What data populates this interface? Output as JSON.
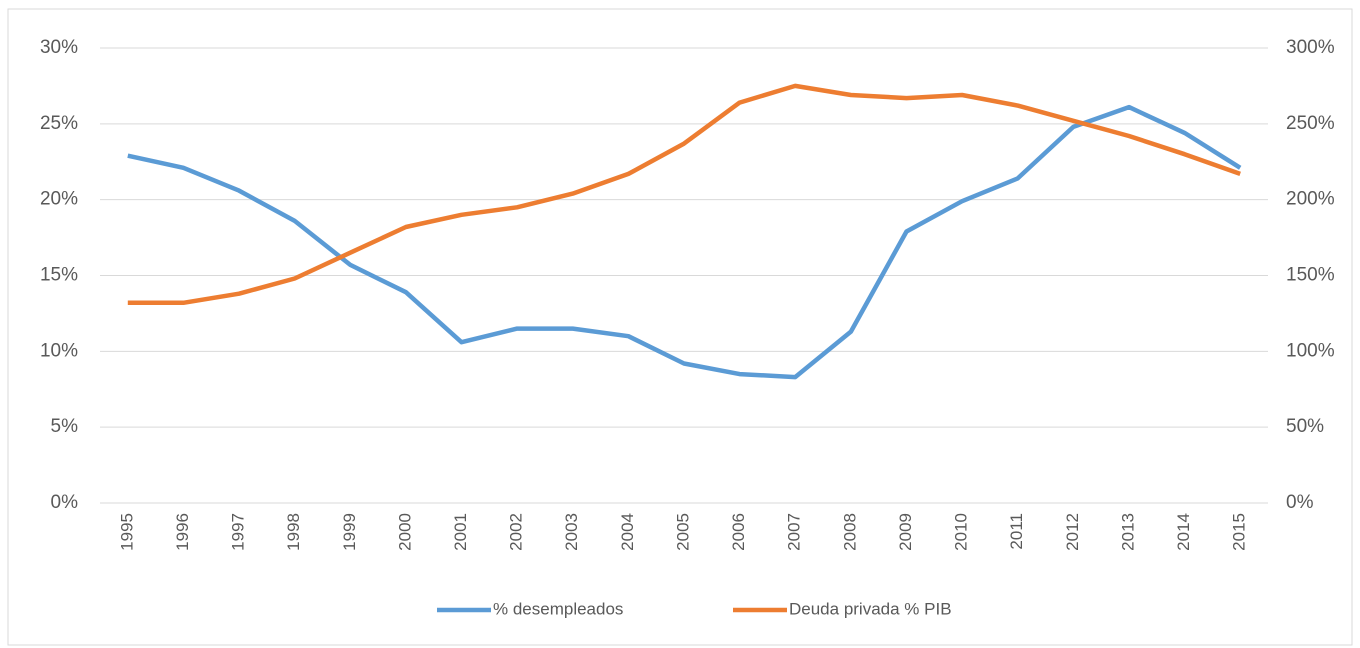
{
  "chart_data": {
    "type": "line",
    "categories": [
      "1995",
      "1996",
      "1997",
      "1998",
      "1999",
      "2000",
      "2001",
      "2002",
      "2003",
      "2004",
      "2005",
      "2006",
      "2007",
      "2008",
      "2009",
      "2010",
      "2011",
      "2012",
      "2013",
      "2014",
      "2015"
    ],
    "series": [
      {
        "name": "% desempleados",
        "color": "#5b9bd5",
        "axis": "y",
        "values": [
          22.9,
          22.1,
          20.6,
          18.6,
          15.7,
          13.9,
          10.6,
          11.5,
          11.5,
          11.0,
          9.2,
          8.5,
          8.3,
          11.3,
          17.9,
          19.9,
          21.4,
          24.8,
          26.1,
          24.4,
          22.1
        ]
      },
      {
        "name": "Deuda privada % PIB",
        "color": "#ed7d31",
        "axis": "y2",
        "values": [
          132,
          132,
          138,
          148,
          165,
          182,
          190,
          195,
          204,
          217,
          237,
          264,
          275,
          269,
          267,
          269,
          262,
          252,
          242,
          230,
          217
        ]
      }
    ],
    "ylim": [
      0,
      30
    ],
    "yticks": [
      {
        "value": 0,
        "label": "0%"
      },
      {
        "value": 5,
        "label": "5%"
      },
      {
        "value": 10,
        "label": "10%"
      },
      {
        "value": 15,
        "label": "15%"
      },
      {
        "value": 20,
        "label": "20%"
      },
      {
        "value": 25,
        "label": "25%"
      },
      {
        "value": 30,
        "label": "30%"
      }
    ],
    "y2lim": [
      0,
      300
    ],
    "y2ticks": [
      {
        "value": 0,
        "label": "0%"
      },
      {
        "value": 50,
        "label": "50%"
      },
      {
        "value": 100,
        "label": "100%"
      },
      {
        "value": 150,
        "label": "150%"
      },
      {
        "value": 200,
        "label": "200%"
      },
      {
        "value": 250,
        "label": "250%"
      },
      {
        "value": 300,
        "label": "300%"
      }
    ],
    "grid": true,
    "legend": "bottom"
  }
}
